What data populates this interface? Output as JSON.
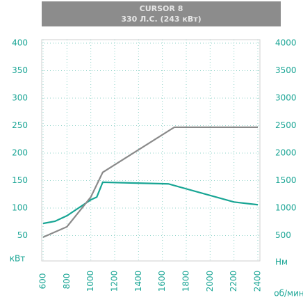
{
  "chart_data": {
    "type": "line",
    "title": "CURSOR 8",
    "subtitle": "330 Л.С. (243 кВт)",
    "y_label": "кВт",
    "y2_label": "Нм",
    "x_label": "об/мин",
    "xlim": [
      600,
      2400
    ],
    "xticks": [
      600,
      800,
      1000,
      1200,
      1400,
      1600,
      1800,
      2000,
      2200,
      2400
    ],
    "ylim": [
      0,
      400
    ],
    "yticks": [
      400,
      350,
      300,
      250,
      200,
      150,
      100,
      50
    ],
    "y2lim": [
      0,
      4000
    ],
    "y2ticks": [
      4000,
      3500,
      3000,
      2500,
      2000,
      1500,
      1000,
      500
    ],
    "grid": true,
    "series": [
      {
        "color": "#17a594",
        "x": [
          600,
          700,
          800,
          1000,
          1050,
          1100,
          1650,
          2200,
          2400
        ],
        "values": [
          72,
          76,
          86,
          115,
          120,
          147,
          144,
          111,
          106
        ]
      },
      {
        "color": "#8a8a8a",
        "axis": "y2",
        "x": [
          600,
          800,
          1000,
          1100,
          1700,
          2400
        ],
        "values": [
          470,
          660,
          1200,
          1650,
          2470,
          2470
        ]
      }
    ]
  }
}
